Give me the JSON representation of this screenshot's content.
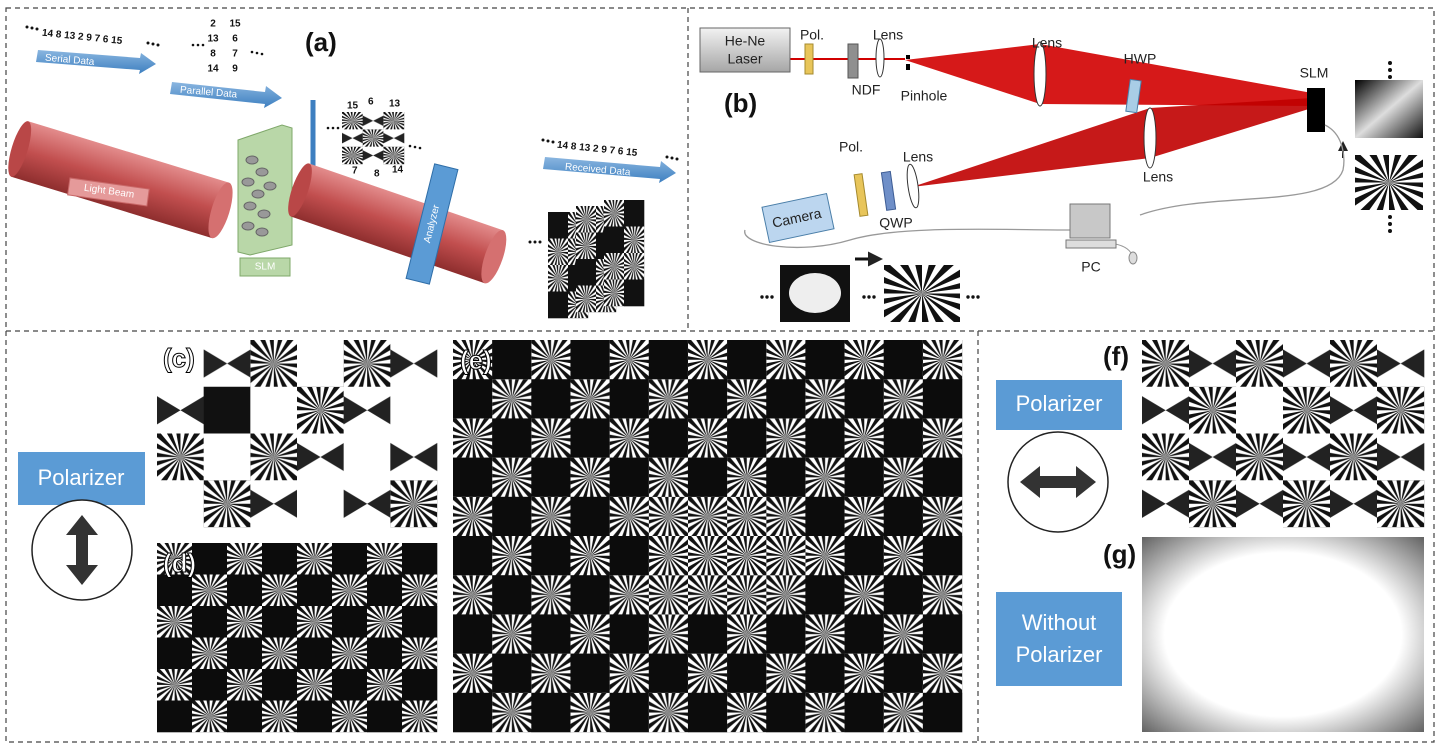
{
  "panel_a": {
    "label": "(a)",
    "serial_sequence": "14 8 13 2 9 7 6 15",
    "serial_label": "Serial Data",
    "parallel_label": "Parallel Data",
    "parallel_grid": [
      [
        "2",
        "15"
      ],
      [
        "13",
        "6"
      ],
      [
        "8",
        "7"
      ],
      [
        "14",
        "9"
      ]
    ],
    "beam_label": "Light Beam",
    "slm_label": "SLM",
    "analyzer_label": "Analyzer",
    "hologram_top": [
      "15",
      "6",
      "13"
    ],
    "hologram_bottom": [
      "7",
      "8",
      "14"
    ],
    "received_sequence": "14 8 13 2 9 7 6 15",
    "received_label": "Received Data"
  },
  "panel_b": {
    "label": "(b)",
    "laser": [
      "He-Ne",
      "Laser"
    ],
    "pol_1": "Pol.",
    "ndf": "NDF",
    "lens_1": "Lens",
    "pinhole": "Pinhole",
    "lens_2": "Lens",
    "hwp": "HWP",
    "slm": "SLM",
    "lens_3": "Lens",
    "pol_2": "Pol.",
    "lens_4": "Lens",
    "camera": "Camera",
    "qwp": "QWP",
    "pc": "PC"
  },
  "panel_c": {
    "label": "(c)"
  },
  "panel_d": {
    "label": "(d)"
  },
  "panel_e": {
    "label": "(e)"
  },
  "panel_f": {
    "label": "(f)"
  },
  "panel_g": {
    "label": "(g)"
  },
  "left_box": "Polarizer",
  "right_box": "Polarizer",
  "without_box": [
    "Without",
    "Polarizer"
  ]
}
